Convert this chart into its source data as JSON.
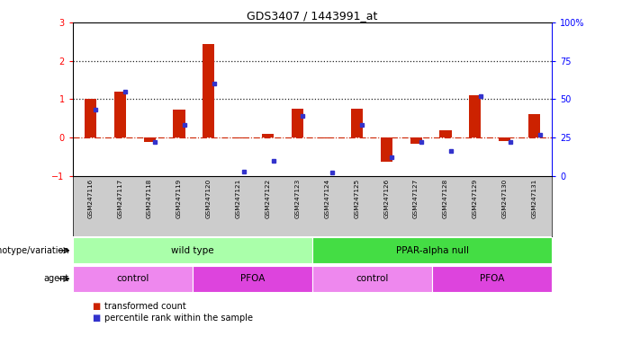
{
  "title": "GDS3407 / 1443991_at",
  "samples": [
    "GSM247116",
    "GSM247117",
    "GSM247118",
    "GSM247119",
    "GSM247120",
    "GSM247121",
    "GSM247122",
    "GSM247123",
    "GSM247124",
    "GSM247125",
    "GSM247126",
    "GSM247127",
    "GSM247128",
    "GSM247129",
    "GSM247130",
    "GSM247131"
  ],
  "red_values": [
    1.0,
    1.2,
    -0.12,
    0.72,
    2.43,
    -0.02,
    0.1,
    0.75,
    -0.03,
    0.75,
    -0.62,
    -0.17,
    0.18,
    1.1,
    -0.1,
    0.62
  ],
  "blue_percentile": [
    43,
    55,
    22,
    33,
    60,
    3,
    10,
    39,
    2,
    33,
    12,
    22,
    16,
    52,
    22,
    27
  ],
  "ylim_left": [
    -1,
    3
  ],
  "yticks_left": [
    -1,
    0,
    1,
    2,
    3
  ],
  "yticks_right_labels": [
    "0",
    "25",
    "50",
    "75",
    "100%"
  ],
  "hline_dotted": [
    1,
    2
  ],
  "genotype_groups": [
    {
      "label": "wild type",
      "start": 0,
      "end": 8,
      "color": "#aaffaa"
    },
    {
      "label": "PPAR-alpha null",
      "start": 8,
      "end": 16,
      "color": "#44dd44"
    }
  ],
  "agent_groups": [
    {
      "label": "control",
      "start": 0,
      "end": 4,
      "color": "#ee88ee"
    },
    {
      "label": "PFOA",
      "start": 4,
      "end": 8,
      "color": "#dd44dd"
    },
    {
      "label": "control",
      "start": 8,
      "end": 12,
      "color": "#ee88ee"
    },
    {
      "label": "PFOA",
      "start": 12,
      "end": 16,
      "color": "#dd44dd"
    }
  ],
  "bar_color_red": "#cc2200",
  "bar_color_blue": "#3333cc",
  "bar_width": 0.4,
  "legend_red": "transformed count",
  "legend_blue": "percentile rank within the sample",
  "label_genotype": "genotype/variation",
  "label_agent": "agent",
  "tick_label_bg": "#cccccc",
  "zero_line_color": "#cc2200",
  "dot_line_color": "#222222"
}
